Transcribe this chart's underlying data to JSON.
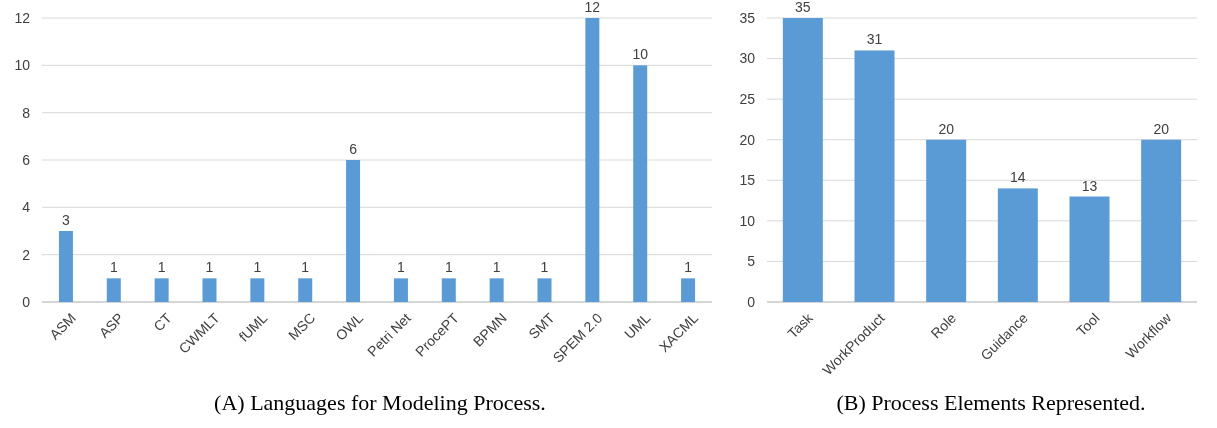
{
  "chart_data": [
    {
      "type": "bar",
      "title": "(A) Languages for Modeling Process.",
      "categories": [
        "ASM",
        "ASP",
        "CT",
        "CWMLT",
        "fUML",
        "MSC",
        "OWL",
        "Petri Net",
        "ProcePT",
        "BPMN",
        "SMT",
        "SPEM 2.0",
        "UML",
        "XACML"
      ],
      "values": [
        3,
        1,
        1,
        1,
        1,
        1,
        6,
        1,
        1,
        1,
        1,
        12,
        10,
        1
      ],
      "color": "#5b9bd5",
      "ylim": [
        0,
        12
      ],
      "yticks": [
        0,
        2,
        4,
        6,
        8,
        10,
        12
      ],
      "grid": "y",
      "data_labels": true
    },
    {
      "type": "bar",
      "title": "(B) Process Elements Represented.",
      "categories": [
        "Task",
        "WorkProduct",
        "Role",
        "Guidance",
        "Tool",
        "Workflow"
      ],
      "values": [
        35,
        31,
        20,
        14,
        13,
        20
      ],
      "color": "#5b9bd5",
      "ylim": [
        0,
        35
      ],
      "yticks": [
        0,
        5,
        10,
        15,
        20,
        25,
        30,
        35
      ],
      "grid": "y",
      "data_labels": true
    }
  ]
}
